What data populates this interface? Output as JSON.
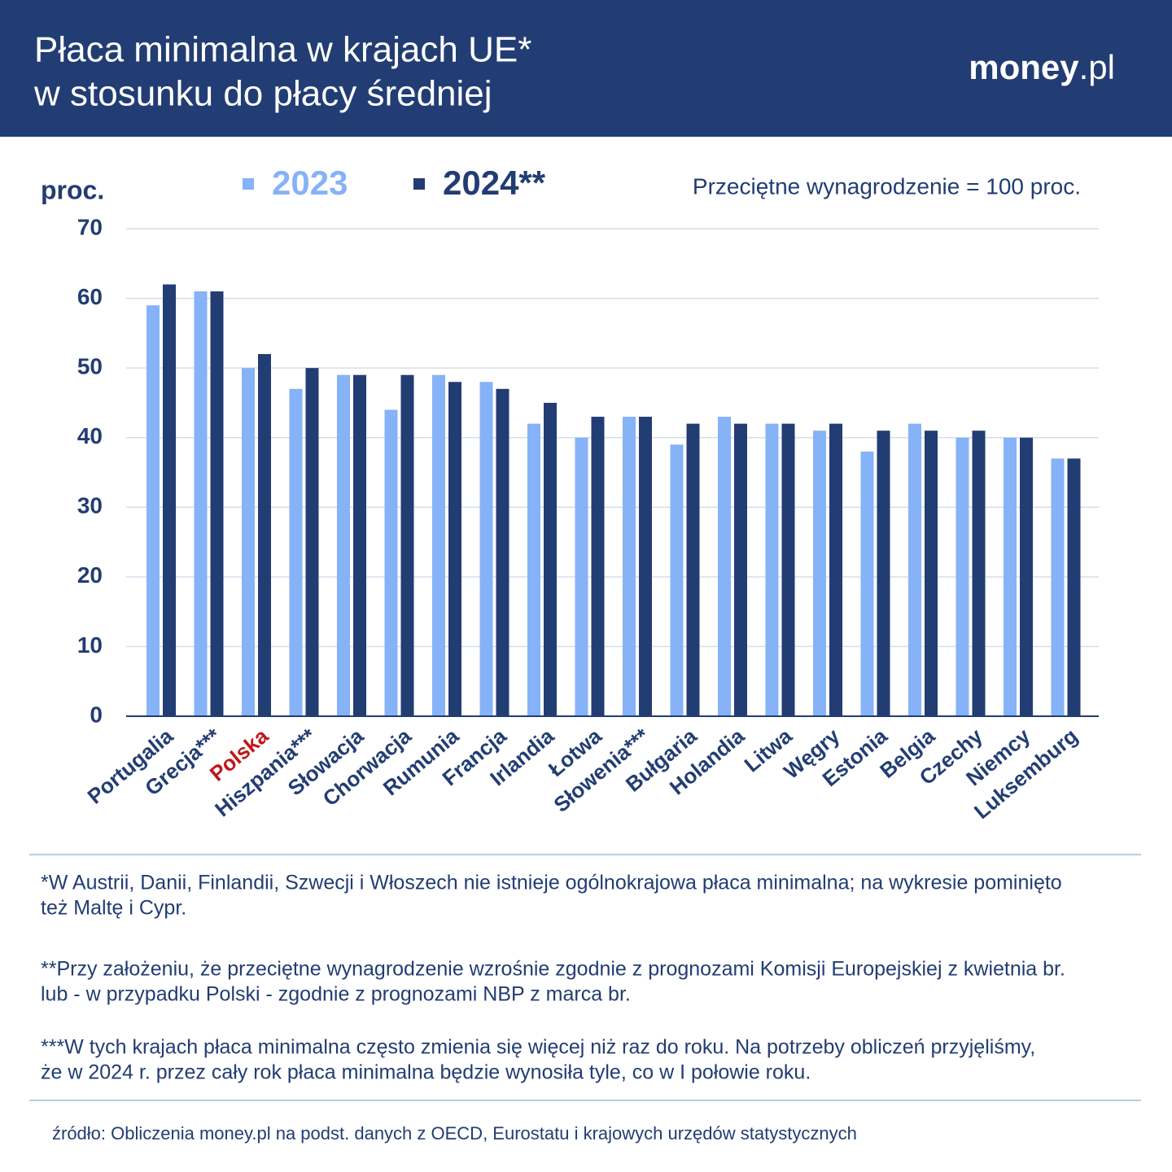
{
  "header": {
    "title": [
      "Płaca minimalna w krajach UE*",
      "w stosunku do płacy średniej"
    ],
    "logo": [
      "money",
      ".pl"
    ]
  },
  "chart_data": {
    "type": "bar",
    "y_label": "proc.",
    "note": "Przeciętne wynagrodzenie = 100 proc.",
    "categories": [
      "Portugalia",
      "Grecja***",
      "Polska",
      "Hiszpania***",
      "Słowacja",
      "Chorwacja",
      "Rumunia",
      "Francja",
      "Irlandia",
      "Łotwa",
      "Słowenia***",
      "Bułgaria",
      "Holandia",
      "Litwa",
      "Węgry",
      "Estonia",
      "Belgia",
      "Czechy",
      "Niemcy",
      "Luksemburg"
    ],
    "series": [
      {
        "name": "2023",
        "color": "#86b2f7",
        "values": [
          59,
          61,
          50,
          47,
          49,
          44,
          49,
          48,
          42,
          40,
          43,
          39,
          43,
          42,
          41,
          38,
          42,
          40,
          40,
          37
        ]
      },
      {
        "name": "2024**",
        "color": "#223d73",
        "values": [
          62,
          61,
          52,
          50,
          49,
          49,
          48,
          47,
          45,
          43,
          43,
          42,
          42,
          42,
          42,
          41,
          41,
          41,
          40,
          37
        ]
      }
    ],
    "ylim": [
      0,
      70
    ],
    "yticks": [
      0,
      10,
      20,
      30,
      40,
      50,
      60,
      70
    ],
    "grid": true,
    "highlight": {
      "index": 2,
      "color": "#c0161b"
    }
  },
  "footnotes": [
    [
      "*W Austrii, Danii, Finlandii, Szwecji i Włoszech nie istnieje ogólnokrajowa płaca minimalna; na wykresie pominięto",
      "też Maltę i Cypr."
    ],
    [
      "**Przy założeniu, że przeciętne wynagrodzenie wzrośnie zgodnie z prognozami Komisji Europejskiej z kwietnia br.",
      "lub - w przypadku Polski - zgodnie z prognozami NBP z marca br."
    ],
    [
      "***W tych krajach płaca minimalna często zmienia się więcej niż raz do roku. Na potrzeby obliczeń przyjęliśmy,",
      "że w 2024 r. przez cały rok płaca minimalna będzie wynosiła tyle, co w I połowie roku."
    ]
  ],
  "source": "źródło: Obliczenia money.pl na podst. danych z OECD, Eurostatu i krajowych urzędów statystycznych"
}
